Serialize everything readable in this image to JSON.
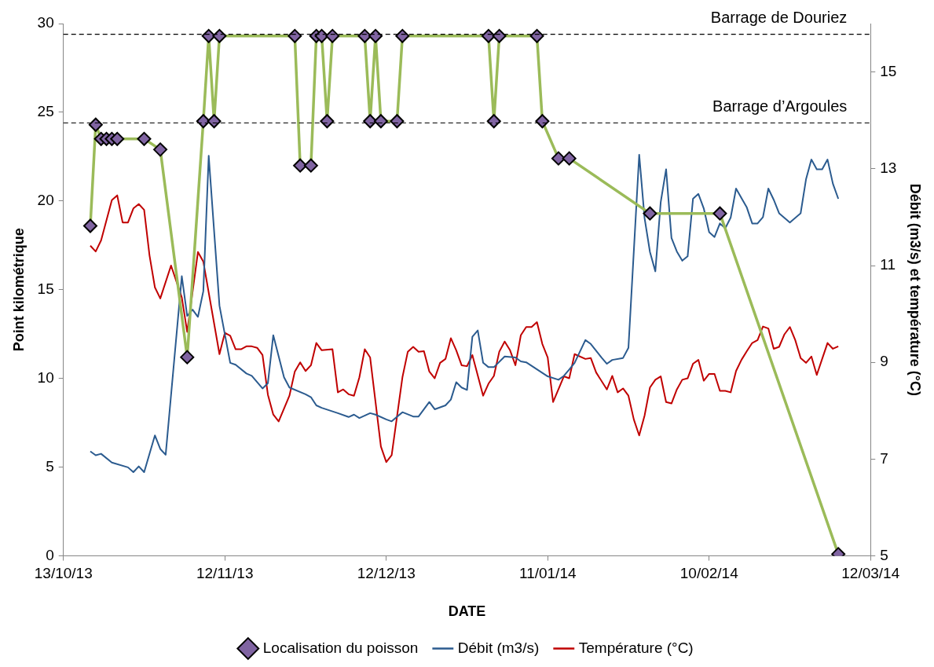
{
  "chart_data": {
    "type": "line",
    "xlabel": "DATE",
    "ylabel": "Point kilométrique",
    "y2label": "Débit (m3/s) et température (°C)",
    "xlim": [
      "2013-10-13",
      "2014-03-12"
    ],
    "xticks": [
      {
        "value": "2013-10-13",
        "label": "13/10/13"
      },
      {
        "value": "2013-11-12",
        "label": "12/11/13"
      },
      {
        "value": "2013-12-12",
        "label": "12/12/13"
      },
      {
        "value": "2014-01-11",
        "label": "11/01/14"
      },
      {
        "value": "2014-02-10",
        "label": "10/02/14"
      },
      {
        "value": "2014-03-12",
        "label": "12/03/14"
      }
    ],
    "ylim": [
      0,
      30
    ],
    "yticks": [
      0,
      5,
      10,
      15,
      20,
      25,
      30
    ],
    "y2lim": [
      5,
      16
    ],
    "y2ticks": [
      5,
      7,
      9,
      11,
      13,
      15
    ],
    "grid": false,
    "legend": "bottom",
    "ref_lines": [
      {
        "axis": "y",
        "value": 29.4,
        "label": "Barrage de Douriez",
        "color": "#000000",
        "line_style": "dashed"
      },
      {
        "axis": "y",
        "value": 24.4,
        "label": "Barrage d’Argoules",
        "color": "#000000",
        "line_style": "dashed"
      }
    ],
    "series": [
      {
        "name": "Localisation du poisson",
        "color": "#9bbb59",
        "marker": "diamond",
        "x": [
          "2013-10-18",
          "2013-10-19",
          "2013-10-20",
          "2013-10-21",
          "2013-10-22",
          "2013-10-23",
          "2013-10-28",
          "2013-10-31",
          "2013-11-05",
          "2013-11-08",
          "2013-11-09",
          "2013-11-10",
          "2013-11-11",
          "2013-11-25",
          "2013-11-26",
          "2013-11-28",
          "2013-11-29",
          "2013-11-30",
          "2013-12-01",
          "2013-12-02",
          "2013-12-08",
          "2013-12-09",
          "2013-12-10",
          "2013-12-11",
          "2013-12-14",
          "2013-12-15",
          "2013-12-31",
          "2014-01-01",
          "2014-01-02",
          "2014-01-09",
          "2014-01-10",
          "2014-01-13",
          "2014-01-15",
          "2014-01-30",
          "2014-02-12",
          "2014-03-06"
        ],
        "values": [
          18.6,
          24.3,
          23.5,
          23.5,
          23.5,
          23.5,
          23.5,
          22.9,
          11.2,
          24.5,
          29.3,
          24.5,
          29.3,
          29.3,
          22.0,
          22.0,
          29.3,
          29.3,
          24.5,
          29.3,
          29.3,
          24.5,
          29.3,
          24.5,
          24.5,
          29.3,
          29.3,
          24.5,
          29.3,
          29.3,
          24.5,
          22.4,
          22.4,
          19.3,
          19.3,
          0.1
        ]
      },
      {
        "name": "Débit (m3/s)",
        "color": "#2b5b8f",
        "axis": "y2",
        "x": [
          "2013-10-18",
          "2013-10-19",
          "2013-10-20",
          "2013-10-22",
          "2013-10-25",
          "2013-10-26",
          "2013-10-27",
          "2013-10-28",
          "2013-10-30",
          "2013-10-31",
          "2013-11-01",
          "2013-11-04",
          "2013-11-05",
          "2013-11-06",
          "2013-11-07",
          "2013-11-08",
          "2013-11-09",
          "2013-11-11",
          "2013-11-13",
          "2013-11-14",
          "2013-11-16",
          "2013-11-17",
          "2013-11-19",
          "2013-11-20",
          "2013-11-21",
          "2013-11-23",
          "2013-11-24",
          "2013-11-27",
          "2013-11-28",
          "2013-11-29",
          "2013-11-30",
          "2013-12-03",
          "2013-12-05",
          "2013-12-06",
          "2013-12-07",
          "2013-12-09",
          "2013-12-10",
          "2013-12-12",
          "2013-12-13",
          "2013-12-15",
          "2013-12-17",
          "2013-12-18",
          "2013-12-20",
          "2013-12-21",
          "2013-12-23",
          "2013-12-24",
          "2013-12-25",
          "2013-12-26",
          "2013-12-27",
          "2013-12-28",
          "2013-12-29",
          "2013-12-30",
          "2013-12-31",
          "2014-01-01",
          "2014-01-03",
          "2014-01-05",
          "2014-01-06",
          "2014-01-07",
          "2014-01-11",
          "2014-01-13",
          "2014-01-14",
          "2014-01-15",
          "2014-01-16",
          "2014-01-18",
          "2014-01-19",
          "2014-01-21",
          "2014-01-22",
          "2014-01-23",
          "2014-01-25",
          "2014-01-26",
          "2014-01-28",
          "2014-01-29",
          "2014-01-30",
          "2014-01-31",
          "2014-02-01",
          "2014-02-02",
          "2014-02-03",
          "2014-02-04",
          "2014-02-05",
          "2014-02-06",
          "2014-02-07",
          "2014-02-08",
          "2014-02-09",
          "2014-02-10",
          "2014-02-11",
          "2014-02-12",
          "2014-02-13",
          "2014-02-14",
          "2014-02-15",
          "2014-02-17",
          "2014-02-18",
          "2014-02-19",
          "2014-02-20",
          "2014-02-21",
          "2014-02-22",
          "2014-02-23",
          "2014-02-25",
          "2014-02-27",
          "2014-02-28",
          "2014-03-01",
          "2014-03-02",
          "2014-03-03",
          "2014-03-04",
          "2014-03-05",
          "2014-03-06"
        ],
        "values": [
          7.16,
          7.08,
          7.11,
          6.93,
          6.83,
          6.73,
          6.85,
          6.73,
          7.49,
          7.21,
          7.09,
          10.78,
          9.96,
          10.09,
          9.94,
          10.47,
          13.27,
          10.17,
          8.99,
          8.95,
          8.77,
          8.72,
          8.46,
          8.57,
          9.56,
          8.69,
          8.48,
          8.34,
          8.28,
          8.11,
          8.06,
          7.95,
          7.87,
          7.92,
          7.85,
          7.95,
          7.92,
          7.82,
          7.78,
          7.97,
          7.88,
          7.88,
          8.18,
          8.03,
          8.11,
          8.23,
          8.59,
          8.48,
          8.43,
          9.53,
          9.66,
          8.99,
          8.9,
          8.9,
          9.12,
          9.1,
          9.02,
          9.0,
          8.71,
          8.64,
          8.72,
          8.85,
          8.99,
          9.46,
          9.38,
          9.1,
          8.97,
          9.05,
          9.09,
          9.3,
          13.29,
          11.98,
          11.28,
          10.88,
          12.31,
          12.99,
          11.57,
          11.29,
          11.1,
          11.19,
          12.38,
          12.48,
          12.18,
          11.69,
          11.59,
          11.87,
          11.77,
          11.99,
          12.59,
          12.2,
          11.87,
          11.87,
          12.0,
          12.59,
          12.36,
          12.08,
          11.89,
          12.08,
          12.78,
          13.19,
          12.99,
          12.99,
          13.19,
          12.69,
          12.38
        ]
      },
      {
        "name": "Température (°C)",
        "color": "#c00000",
        "axis": "y2",
        "x": [
          "2013-10-18",
          "2013-10-19",
          "2013-10-20",
          "2013-10-22",
          "2013-10-23",
          "2013-10-24",
          "2013-10-25",
          "2013-10-26",
          "2013-10-27",
          "2013-10-28",
          "2013-10-29",
          "2013-10-30",
          "2013-10-31",
          "2013-11-02",
          "2013-11-04",
          "2013-11-05",
          "2013-11-07",
          "2013-11-08",
          "2013-11-11",
          "2013-11-12",
          "2013-11-13",
          "2013-11-14",
          "2013-11-15",
          "2013-11-16",
          "2013-11-17",
          "2013-11-18",
          "2013-11-19",
          "2013-11-20",
          "2013-11-21",
          "2013-11-22",
          "2013-11-24",
          "2013-11-25",
          "2013-11-26",
          "2013-11-27",
          "2013-11-28",
          "2013-11-29",
          "2013-11-30",
          "2013-12-02",
          "2013-12-03",
          "2013-12-04",
          "2013-12-05",
          "2013-12-06",
          "2013-12-07",
          "2013-12-08",
          "2013-12-09",
          "2013-12-11",
          "2013-12-12",
          "2013-12-13",
          "2013-12-15",
          "2013-12-16",
          "2013-12-17",
          "2013-12-18",
          "2013-12-19",
          "2013-12-20",
          "2013-12-21",
          "2013-12-22",
          "2013-12-23",
          "2013-12-24",
          "2013-12-25",
          "2013-12-26",
          "2013-12-27",
          "2013-12-28",
          "2013-12-30",
          "2013-12-31",
          "2014-01-01",
          "2014-01-02",
          "2014-01-03",
          "2014-01-04",
          "2014-01-05",
          "2014-01-06",
          "2014-01-07",
          "2014-01-08",
          "2014-01-09",
          "2014-01-10",
          "2014-01-11",
          "2014-01-12",
          "2014-01-14",
          "2014-01-15",
          "2014-01-16",
          "2014-01-18",
          "2014-01-19",
          "2014-01-20",
          "2014-01-22",
          "2014-01-23",
          "2014-01-24",
          "2014-01-25",
          "2014-01-26",
          "2014-01-27",
          "2014-01-28",
          "2014-01-29",
          "2014-01-30",
          "2014-01-31",
          "2014-02-01",
          "2014-02-02",
          "2014-02-03",
          "2014-02-04",
          "2014-02-05",
          "2014-02-06",
          "2014-02-07",
          "2014-02-08",
          "2014-02-09",
          "2014-02-10",
          "2014-02-11",
          "2014-02-12",
          "2014-02-13",
          "2014-02-14",
          "2014-02-15",
          "2014-02-16",
          "2014-02-17",
          "2014-02-18",
          "2014-02-19",
          "2014-02-20",
          "2014-02-21",
          "2014-02-22",
          "2014-02-23",
          "2014-02-24",
          "2014-02-25",
          "2014-02-26",
          "2014-02-27",
          "2014-02-28",
          "2014-03-01",
          "2014-03-02",
          "2014-03-03",
          "2014-03-04",
          "2014-03-05",
          "2014-03-06"
        ],
        "values": [
          11.41,
          11.29,
          11.52,
          12.35,
          12.45,
          11.89,
          11.89,
          12.18,
          12.27,
          12.15,
          11.21,
          10.55,
          10.32,
          11.0,
          10.34,
          9.63,
          11.28,
          11.08,
          9.17,
          9.61,
          9.55,
          9.27,
          9.27,
          9.33,
          9.33,
          9.3,
          9.15,
          8.33,
          7.92,
          7.78,
          8.31,
          8.81,
          9.0,
          8.82,
          8.94,
          9.4,
          9.25,
          9.27,
          8.38,
          8.44,
          8.34,
          8.31,
          8.69,
          9.27,
          9.1,
          7.26,
          6.94,
          7.08,
          8.69,
          9.22,
          9.32,
          9.22,
          9.23,
          8.81,
          8.67,
          8.99,
          9.07,
          9.5,
          9.25,
          8.94,
          8.92,
          9.15,
          8.31,
          8.56,
          8.72,
          9.22,
          9.43,
          9.25,
          8.94,
          9.56,
          9.73,
          9.73,
          9.83,
          9.38,
          9.1,
          8.18,
          8.71,
          8.67,
          9.17,
          9.07,
          9.09,
          8.79,
          8.44,
          8.72,
          8.38,
          8.46,
          8.31,
          7.82,
          7.49,
          7.9,
          8.48,
          8.64,
          8.71,
          8.18,
          8.15,
          8.44,
          8.64,
          8.67,
          8.97,
          9.05,
          8.62,
          8.76,
          8.76,
          8.41,
          8.41,
          8.38,
          8.82,
          9.05,
          9.23,
          9.4,
          9.46,
          9.74,
          9.7,
          9.28,
          9.32,
          9.58,
          9.73,
          9.46,
          9.09,
          8.99,
          9.12,
          8.74,
          9.07,
          9.4,
          9.28,
          9.33
        ]
      }
    ]
  }
}
